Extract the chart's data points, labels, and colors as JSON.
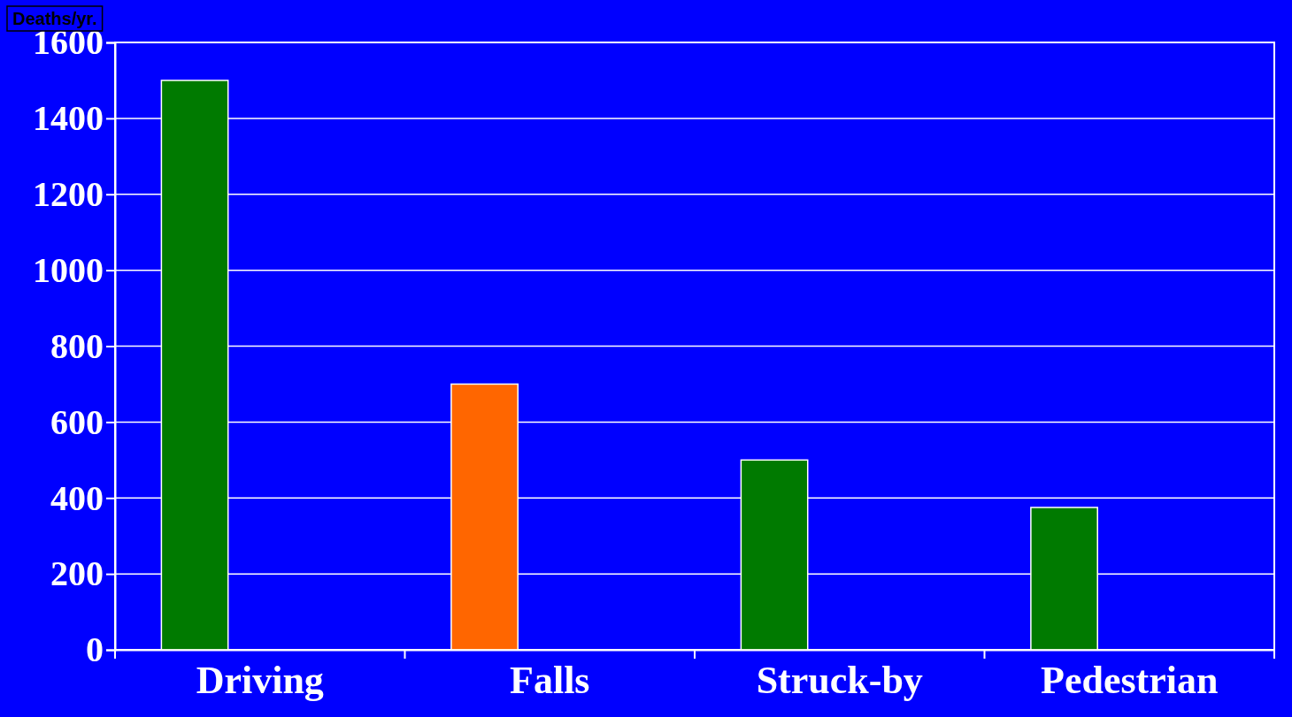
{
  "chart_data": {
    "type": "bar",
    "ylabel": "Deaths/yr.",
    "categories": [
      "Driving",
      "Falls",
      "Struck-by",
      "Pedestrian"
    ],
    "values": [
      1500,
      700,
      500,
      375
    ],
    "colors": [
      "#007a00",
      "#ff6600",
      "#007a00",
      "#007a00"
    ],
    "ylim": [
      0,
      1600
    ],
    "yticks": [
      0,
      200,
      400,
      600,
      800,
      1000,
      1200,
      1400,
      1600
    ],
    "grid": "y"
  }
}
